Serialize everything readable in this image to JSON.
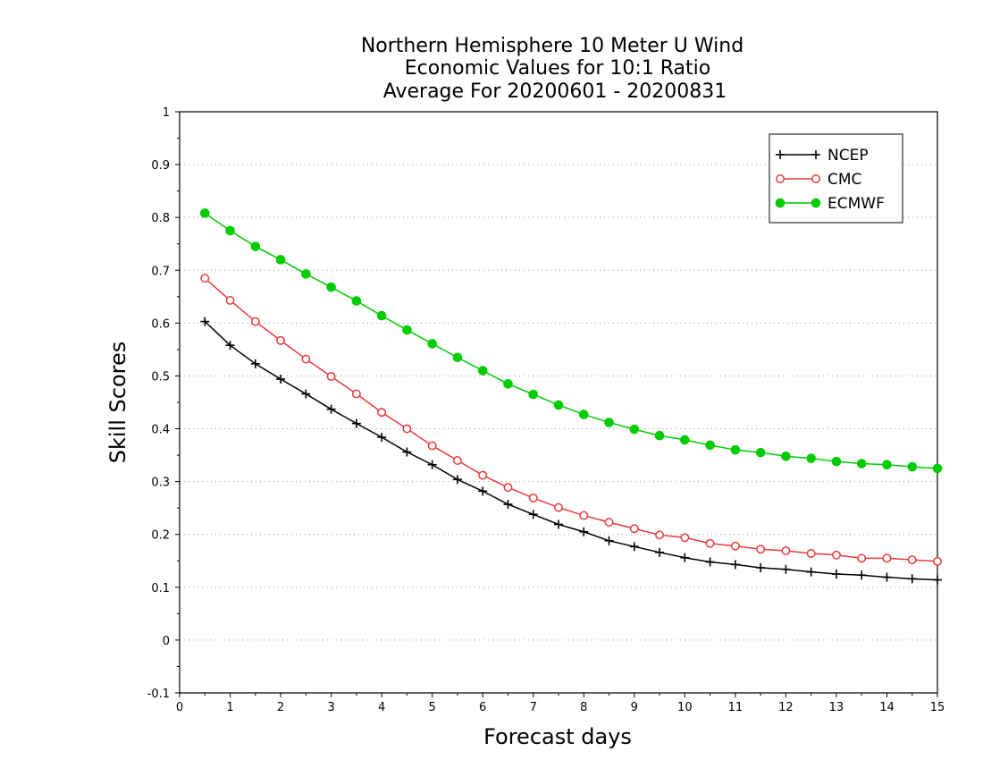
{
  "chart_data": {
    "type": "line",
    "title_lines": [
      "Northern Hemisphere 10 Meter U Wind",
      "Economic Values for 10:1 Ratio",
      "Average For 20200601 - 20200831"
    ],
    "xlabel": "Forecast days",
    "ylabel": "Skill Scores",
    "xlim": [
      0,
      15
    ],
    "ylim": [
      -0.1,
      1
    ],
    "xticks": [
      0,
      1,
      2,
      3,
      4,
      5,
      6,
      7,
      8,
      9,
      10,
      11,
      12,
      13,
      14,
      15
    ],
    "xtick_labels": [
      "0",
      "1",
      "2",
      "3",
      "4",
      "5",
      "6",
      "7",
      "8",
      "9",
      "10",
      "11",
      "12",
      "13",
      "14",
      "15"
    ],
    "yticks": [
      -0.1,
      0,
      0.1,
      0.2,
      0.3,
      0.4,
      0.5,
      0.6,
      0.7,
      0.8,
      0.9,
      1
    ],
    "ytick_labels": [
      "-0.1",
      "0",
      "0.1",
      "0.2",
      "0.3",
      "0.4",
      "0.5",
      "0.6",
      "0.7",
      "0.8",
      "0.9",
      "1"
    ],
    "grid": "horizontal dotted",
    "legend_position": "top-right",
    "x": [
      0.5,
      1,
      1.5,
      2,
      2.5,
      3,
      3.5,
      4,
      4.5,
      5,
      5.5,
      6,
      6.5,
      7,
      7.5,
      8,
      8.5,
      9,
      9.5,
      10,
      10.5,
      11,
      11.5,
      12,
      12.5,
      13,
      13.5,
      14,
      14.5,
      15
    ],
    "series": [
      {
        "name": "NCEP",
        "color": "#000000",
        "marker": "plus",
        "values": [
          0.603,
          0.558,
          0.523,
          0.494,
          0.466,
          0.437,
          0.41,
          0.384,
          0.356,
          0.332,
          0.304,
          0.282,
          0.257,
          0.238,
          0.219,
          0.205,
          0.188,
          0.177,
          0.166,
          0.156,
          0.148,
          0.143,
          0.137,
          0.134,
          0.129,
          0.125,
          0.123,
          0.119,
          0.116,
          0.114
        ]
      },
      {
        "name": "CMC",
        "color": "#e8393d",
        "marker": "open-circle",
        "values": [
          0.685,
          0.643,
          0.603,
          0.567,
          0.532,
          0.499,
          0.466,
          0.431,
          0.4,
          0.368,
          0.34,
          0.312,
          0.289,
          0.269,
          0.251,
          0.236,
          0.223,
          0.211,
          0.199,
          0.194,
          0.183,
          0.178,
          0.172,
          0.169,
          0.164,
          0.161,
          0.155,
          0.155,
          0.152,
          0.149
        ]
      },
      {
        "name": "ECMWF",
        "color": "#00cc00",
        "marker": "filled-circle",
        "values": [
          0.808,
          0.775,
          0.745,
          0.72,
          0.693,
          0.668,
          0.642,
          0.614,
          0.587,
          0.561,
          0.535,
          0.51,
          0.485,
          0.465,
          0.445,
          0.427,
          0.412,
          0.399,
          0.387,
          0.379,
          0.369,
          0.36,
          0.355,
          0.348,
          0.344,
          0.338,
          0.334,
          0.332,
          0.328,
          0.325
        ]
      }
    ]
  }
}
